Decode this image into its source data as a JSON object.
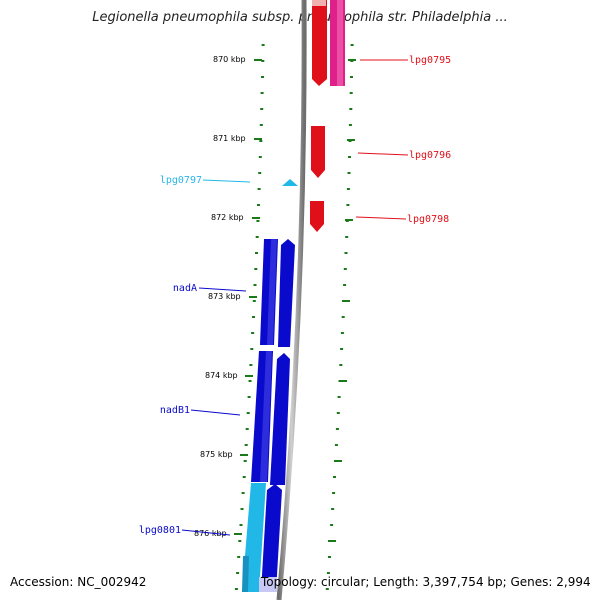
{
  "title": "Legionella pneumophila subsp. pneumophila str. Philadelphia ...",
  "footer": {
    "accession": "Accession: NC_002942",
    "summary": "Topology: circular; Length: 3,397,754 bp; Genes: 2,994"
  },
  "scale": {
    "ticks": [
      "870 kbp",
      "871 kbp",
      "872 kbp",
      "873 kbp",
      "874 kbp",
      "875 kbp",
      "876 kbp"
    ]
  },
  "genes": [
    {
      "id": "lpg0795",
      "label": "lpg0795",
      "color": "#e0101a"
    },
    {
      "id": "lpg0796",
      "label": "lpg0796",
      "color": "#e0101a"
    },
    {
      "id": "lpg0797",
      "label": "lpg0797",
      "color": "#29b6e6"
    },
    {
      "id": "lpg0798",
      "label": "lpg0798",
      "color": "#e0101a"
    },
    {
      "id": "nadA",
      "label": "nadA",
      "color": "#0a0acc"
    },
    {
      "id": "nadB1",
      "label": "nadB1",
      "color": "#0a0acc"
    },
    {
      "id": "lpg0801",
      "label": "lpg0801",
      "color": "#0a0acc"
    }
  ],
  "colors": {
    "forward_red": "#e0101a",
    "magenta": "#e0208a",
    "cyan": "#21b8e8",
    "blue": "#0a0acc",
    "backbone": "#8a8a8a",
    "tick_green": "#1a7a1a"
  }
}
